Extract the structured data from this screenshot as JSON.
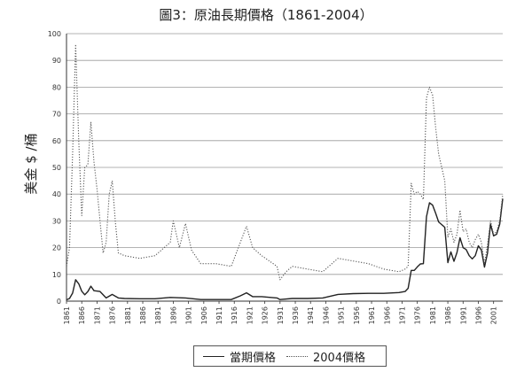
{
  "chart_data": {
    "type": "line",
    "title": "圖3：原油長期價格（1861-2004）",
    "ylabel": "美金 $ /桶",
    "xlabel": "",
    "ylim": [
      0,
      100
    ],
    "yticks": [
      0,
      10,
      20,
      30,
      40,
      50,
      60,
      70,
      80,
      90,
      100
    ],
    "xlim": [
      1861,
      2004
    ],
    "xticks": [
      1861,
      1866,
      1871,
      1876,
      1881,
      1886,
      1891,
      1896,
      1901,
      1906,
      1911,
      1916,
      1921,
      1926,
      1931,
      1936,
      1941,
      1946,
      1951,
      1956,
      1961,
      1966,
      1971,
      1976,
      1981,
      1986,
      1991,
      1996,
      2001
    ],
    "grid": true,
    "legend_position": "bottom-center",
    "series": [
      {
        "name": "當期價格",
        "style": "solid",
        "color": "#222222",
        "x": [
          1861,
          1862,
          1863,
          1864,
          1865,
          1866,
          1867,
          1868,
          1869,
          1870,
          1872,
          1874,
          1876,
          1878,
          1880,
          1885,
          1890,
          1895,
          1900,
          1905,
          1910,
          1915,
          1918,
          1920,
          1922,
          1925,
          1930,
          1931,
          1935,
          1940,
          1945,
          1950,
          1955,
          1960,
          1965,
          1970,
          1972,
          1973,
          1974,
          1975,
          1976,
          1977,
          1978,
          1979,
          1980,
          1981,
          1982,
          1983,
          1984,
          1985,
          1986,
          1987,
          1988,
          1989,
          1990,
          1991,
          1992,
          1993,
          1994,
          1995,
          1996,
          1997,
          1998,
          1999,
          2000,
          2001,
          2002,
          2003,
          2004
        ],
        "y": [
          0.5,
          1.0,
          3.0,
          8.0,
          6.5,
          3.7,
          2.4,
          3.6,
          5.6,
          3.9,
          3.6,
          1.2,
          2.5,
          1.2,
          1.0,
          0.9,
          0.9,
          1.4,
          1.2,
          0.6,
          0.6,
          0.6,
          2.0,
          3.1,
          1.7,
          1.7,
          1.2,
          0.6,
          1.0,
          1.0,
          1.2,
          2.5,
          2.8,
          2.9,
          2.9,
          3.2,
          3.6,
          4.8,
          11.5,
          11.5,
          12.8,
          13.9,
          14.0,
          31.6,
          36.8,
          35.9,
          32.9,
          29.6,
          28.6,
          27.6,
          14.4,
          18.4,
          14.9,
          18.2,
          23.7,
          20.0,
          19.3,
          17.0,
          15.8,
          17.0,
          20.7,
          19.1,
          12.7,
          17.9,
          28.7,
          24.4,
          25.0,
          28.8,
          38.3
        ]
      },
      {
        "name": "2004價格",
        "style": "dotted",
        "color": "#555555",
        "x": [
          1861,
          1862,
          1863,
          1864,
          1865,
          1866,
          1867,
          1868,
          1869,
          1870,
          1871,
          1872,
          1873,
          1874,
          1875,
          1876,
          1877,
          1878,
          1880,
          1885,
          1890,
          1895,
          1896,
          1898,
          1900,
          1902,
          1905,
          1910,
          1915,
          1918,
          1920,
          1922,
          1925,
          1930,
          1931,
          1933,
          1935,
          1940,
          1945,
          1950,
          1955,
          1960,
          1965,
          1970,
          1972,
          1973,
          1974,
          1975,
          1976,
          1977,
          1978,
          1979,
          1980,
          1981,
          1982,
          1983,
          1984,
          1985,
          1986,
          1987,
          1988,
          1989,
          1990,
          1991,
          1992,
          1993,
          1994,
          1995,
          1996,
          1997,
          1998,
          1999,
          2000,
          2001,
          2002,
          2003,
          2004
        ],
        "y": [
          13,
          20,
          55,
          96,
          60,
          32,
          50,
          51,
          67,
          52,
          42,
          30,
          18,
          22,
          40,
          45,
          30,
          18,
          17,
          16,
          17,
          22,
          30,
          20,
          29,
          19,
          14,
          14,
          13,
          22,
          28,
          20,
          17,
          13,
          8,
          11,
          13,
          12,
          11,
          16,
          15,
          14,
          12,
          11,
          12,
          13,
          44,
          40,
          41,
          40,
          38,
          76,
          80,
          77,
          65,
          55,
          50,
          45,
          24,
          27,
          22,
          25,
          34,
          26,
          27,
          22,
          20,
          23,
          25,
          22,
          14,
          21,
          30,
          25,
          26,
          30,
          40
        ]
      }
    ]
  }
}
